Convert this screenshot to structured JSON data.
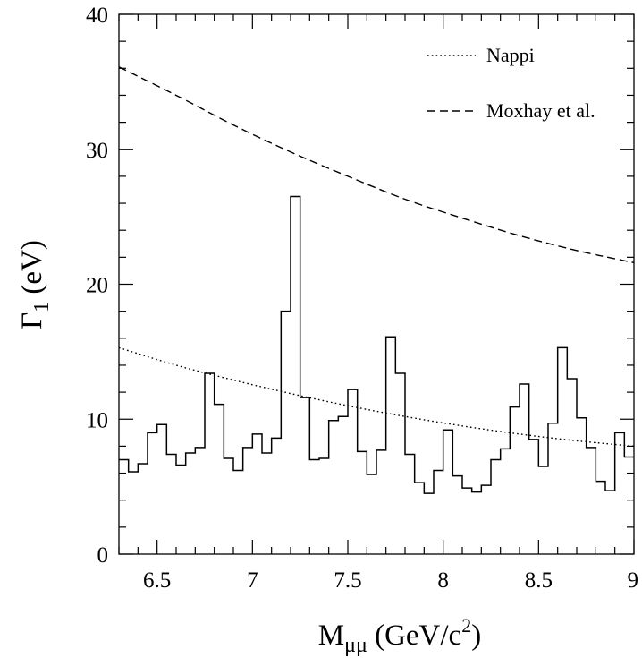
{
  "chart_data": {
    "type": "line",
    "title": "",
    "xlabel": {
      "main": "M",
      "sub": "μμ",
      "rest": " (GeV/c",
      "sup": "2",
      "close": ")"
    },
    "ylabel": {
      "main": "Γ",
      "sub": "1",
      "rest": " (eV)"
    },
    "xlim": [
      6.3,
      9.0
    ],
    "ylim": [
      0,
      40
    ],
    "xticks": [
      6.5,
      7,
      7.5,
      8,
      8.5,
      9
    ],
    "xtick_labels": [
      "6.5",
      "7",
      "7.5",
      "8",
      "8.5",
      "9"
    ],
    "yticks": [
      0,
      10,
      20,
      30,
      40
    ],
    "ytick_labels": [
      "0",
      "10",
      "20",
      "30",
      "40"
    ],
    "grid": false,
    "legend_position": "top-right",
    "series": [
      {
        "name": "",
        "style": "histogram",
        "bin_edges": [
          6.3,
          6.35,
          6.4,
          6.45,
          6.5,
          6.55,
          6.6,
          6.65,
          6.7,
          6.75,
          6.8,
          6.85,
          6.9,
          6.95,
          7.0,
          7.05,
          7.1,
          7.15,
          7.2,
          7.25,
          7.3,
          7.35,
          7.4,
          7.45,
          7.5,
          7.55,
          7.6,
          7.65,
          7.7,
          7.75,
          7.8,
          7.85,
          7.9,
          7.95,
          8.0,
          8.05,
          8.1,
          8.15,
          8.2,
          8.25,
          8.3,
          8.35,
          8.4,
          8.45,
          8.5,
          8.55,
          8.6,
          8.65,
          8.7,
          8.75,
          8.8,
          8.85,
          8.9,
          8.95,
          9.0
        ],
        "values": [
          7.0,
          6.1,
          6.7,
          9.0,
          9.6,
          7.4,
          6.6,
          7.5,
          7.9,
          13.4,
          11.1,
          7.1,
          6.2,
          7.9,
          8.9,
          7.5,
          8.6,
          18.0,
          26.5,
          11.6,
          7.0,
          7.1,
          9.9,
          10.2,
          12.2,
          7.6,
          5.9,
          7.7,
          16.1,
          13.4,
          7.4,
          5.3,
          4.5,
          6.2,
          9.2,
          5.8,
          4.9,
          4.6,
          5.1,
          7.0,
          7.8,
          10.9,
          12.6,
          8.5,
          6.5,
          9.7,
          15.3,
          13.0,
          10.1,
          7.9,
          5.4,
          4.7,
          9.0,
          7.2
        ]
      },
      {
        "name": "Nappi",
        "style": "dotted",
        "x": [
          6.3,
          6.6,
          6.9,
          7.2,
          7.5,
          7.8,
          8.1,
          8.4,
          8.7,
          9.0
        ],
        "values": [
          15.3,
          14.0,
          12.9,
          11.9,
          11.0,
          10.2,
          9.5,
          8.9,
          8.4,
          8.0
        ]
      },
      {
        "name": "Moxhay et al.",
        "style": "dashed",
        "x": [
          6.3,
          6.6,
          6.9,
          7.2,
          7.5,
          7.8,
          8.1,
          8.4,
          8.7,
          9.0
        ],
        "values": [
          36.1,
          34.0,
          31.8,
          29.8,
          28.0,
          26.3,
          24.9,
          23.6,
          22.5,
          21.6
        ]
      }
    ]
  }
}
